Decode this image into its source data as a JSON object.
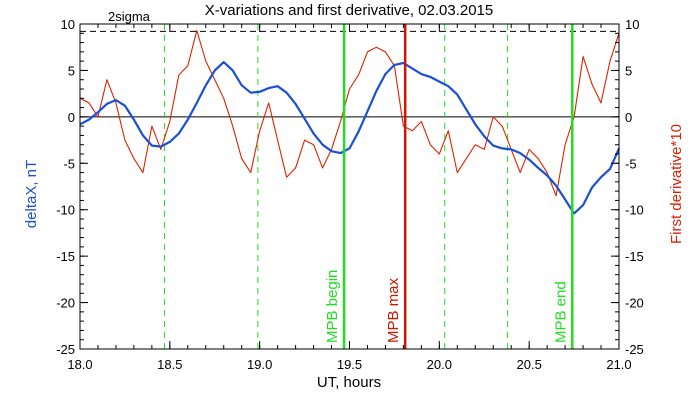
{
  "chart_data": {
    "type": "line",
    "title": "X-variations and first derivative, 02.03.2015",
    "xlabel": "UT, hours",
    "ylabel_left": "deltaX, nT",
    "ylabel_right": "First derivative*10",
    "xlim": [
      18.0,
      21.0
    ],
    "ylim": [
      -25,
      10
    ],
    "x_ticks": [
      "18.0",
      "18.5",
      "19.0",
      "19.5",
      "20.0",
      "20.5",
      "21.0"
    ],
    "y_ticks": [
      "10",
      "5",
      "0",
      "-5",
      "-10",
      "-15",
      "-20",
      "-25"
    ],
    "sigma_label": "2sigma",
    "sigma_level": 9.2,
    "zero_line": 0,
    "colors": {
      "deltaX": "#1a4fd6",
      "derivative": "#dd2200",
      "green": "#22dd22",
      "red_marker": "#cc1800",
      "axis": "#000000"
    },
    "dashed_verticals": [
      18.47,
      18.99,
      20.03,
      20.38
    ],
    "markers": [
      {
        "x": 19.47,
        "label": "MPB begin",
        "color": "#22dd22"
      },
      {
        "x": 19.81,
        "label": "MPB max",
        "color": "#cc1800"
      },
      {
        "x": 20.74,
        "label": "MPB end",
        "color": "#22dd22"
      }
    ],
    "series": [
      {
        "name": "deltaX, nT",
        "x": [
          18.0,
          18.05,
          18.1,
          18.15,
          18.2,
          18.25,
          18.3,
          18.35,
          18.4,
          18.45,
          18.5,
          18.55,
          18.6,
          18.65,
          18.7,
          18.75,
          18.8,
          18.85,
          18.9,
          18.95,
          19.0,
          19.05,
          19.1,
          19.15,
          19.2,
          19.25,
          19.3,
          19.35,
          19.4,
          19.45,
          19.5,
          19.55,
          19.6,
          19.65,
          19.7,
          19.75,
          19.8,
          19.85,
          19.9,
          19.95,
          20.0,
          20.05,
          20.1,
          20.15,
          20.2,
          20.25,
          20.3,
          20.35,
          20.4,
          20.45,
          20.5,
          20.55,
          20.6,
          20.65,
          20.7,
          20.75,
          20.8,
          20.85,
          20.9,
          20.95,
          21.0
        ],
        "values": [
          -0.8,
          -0.3,
          0.5,
          1.4,
          1.8,
          1.2,
          -0.3,
          -2.0,
          -3.1,
          -3.2,
          -2.7,
          -1.8,
          -0.3,
          1.5,
          3.4,
          5.0,
          5.9,
          5.0,
          3.4,
          2.6,
          2.7,
          3.1,
          3.3,
          2.6,
          1.4,
          -0.2,
          -1.8,
          -3.0,
          -3.7,
          -3.9,
          -3.4,
          -1.6,
          0.6,
          2.8,
          4.6,
          5.6,
          5.8,
          5.2,
          4.6,
          4.3,
          3.8,
          3.3,
          2.4,
          0.8,
          -0.8,
          -2.1,
          -3.1,
          -3.4,
          -3.5,
          -3.9,
          -4.6,
          -5.5,
          -6.3,
          -7.4,
          -8.9,
          -10.4,
          -9.5,
          -7.6,
          -6.5,
          -5.6,
          -3.4
        ]
      },
      {
        "name": "First derivative*10",
        "x": [
          18.0,
          18.05,
          18.1,
          18.15,
          18.2,
          18.25,
          18.3,
          18.35,
          18.4,
          18.45,
          18.5,
          18.55,
          18.6,
          18.65,
          18.7,
          18.75,
          18.8,
          18.85,
          18.9,
          18.95,
          19.0,
          19.05,
          19.1,
          19.15,
          19.2,
          19.25,
          19.3,
          19.35,
          19.4,
          19.45,
          19.5,
          19.55,
          19.6,
          19.65,
          19.7,
          19.75,
          19.8,
          19.85,
          19.9,
          19.95,
          20.0,
          20.05,
          20.1,
          20.15,
          20.2,
          20.25,
          20.3,
          20.35,
          20.4,
          20.45,
          20.5,
          20.55,
          20.6,
          20.65,
          20.7,
          20.75,
          20.8,
          20.85,
          20.9,
          20.95,
          21.0
        ],
        "values": [
          2.0,
          1.5,
          0.0,
          4.0,
          1.5,
          -2.5,
          -4.5,
          -6.0,
          -1.0,
          -3.5,
          -0.5,
          4.5,
          5.5,
          9.3,
          6.0,
          4.0,
          2.0,
          -1.0,
          -4.5,
          -6.0,
          -1.5,
          1.5,
          -2.5,
          -6.5,
          -5.5,
          -2.5,
          -3.0,
          -5.5,
          -3.5,
          -0.5,
          3.0,
          4.5,
          7.0,
          7.5,
          7.0,
          5.5,
          -1.0,
          -1.5,
          -0.5,
          -3.0,
          -4.0,
          -1.5,
          -6.0,
          -4.5,
          -3.0,
          -3.5,
          0.0,
          -1.0,
          -3.5,
          -6.0,
          -3.5,
          -4.5,
          -6.0,
          -8.5,
          -3.0,
          0.0,
          6.5,
          3.5,
          1.5,
          6.0,
          9.0
        ]
      }
    ]
  }
}
